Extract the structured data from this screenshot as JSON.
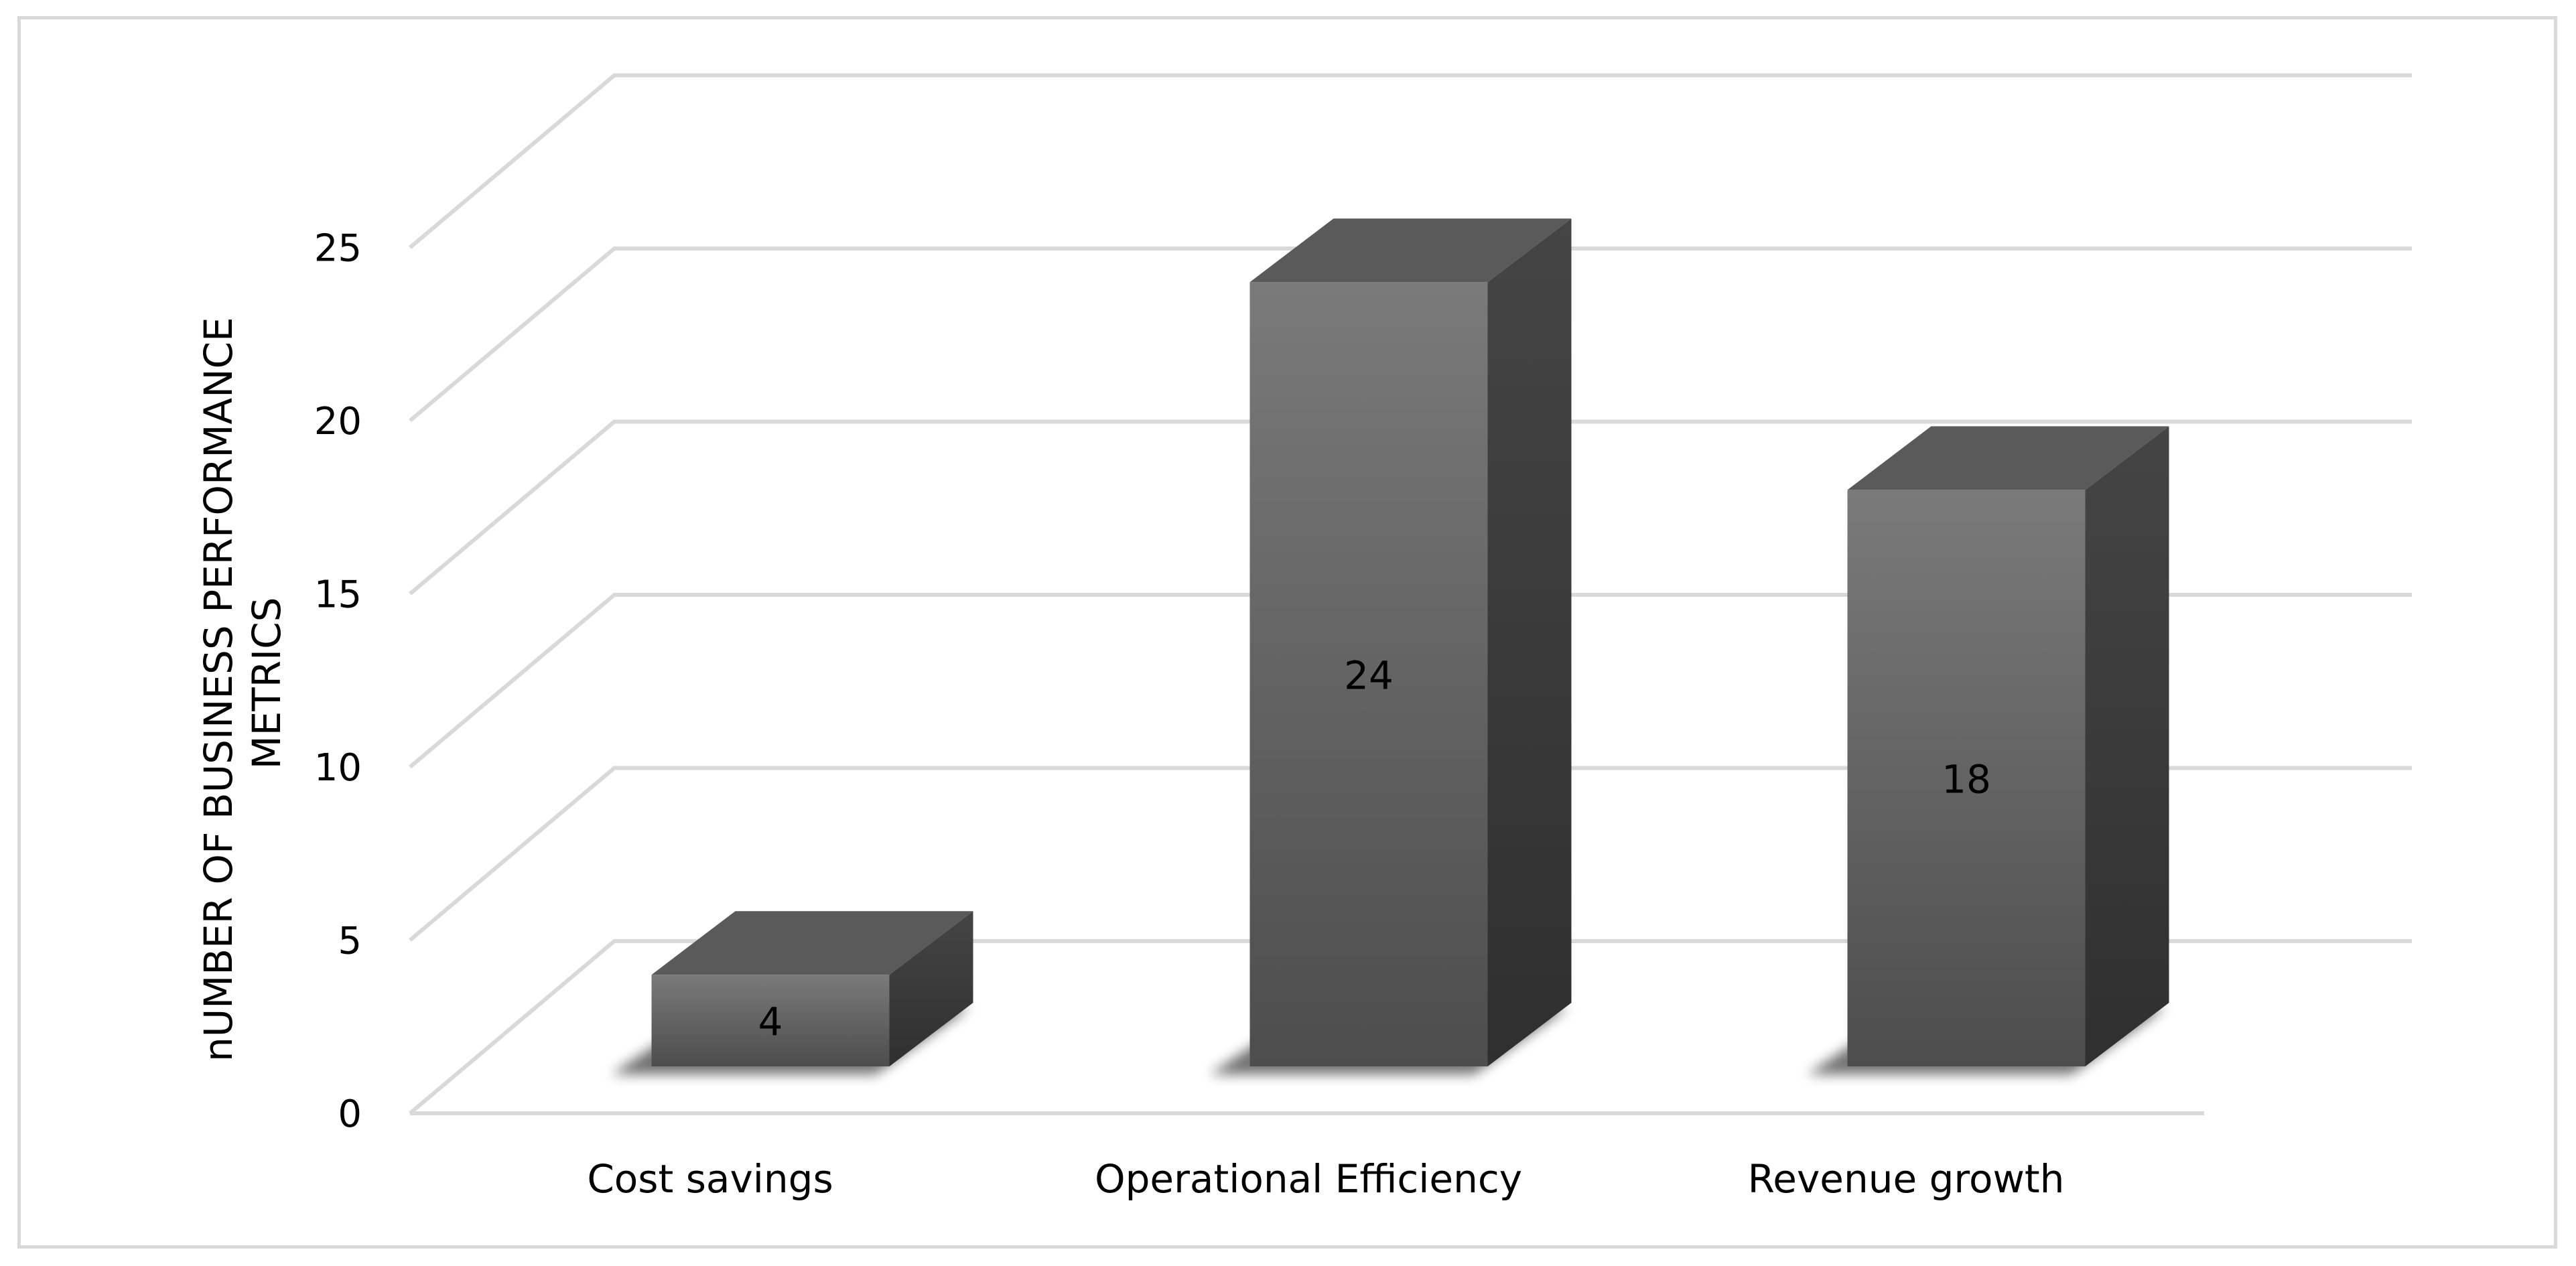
{
  "chart_data": {
    "type": "bar",
    "title": "",
    "xlabel": "",
    "ylabel": "nUMBER OF BUSINESS PERFORMANCE METRICS",
    "ylabel_lines": [
      "nUMBER OF BUSINESS PERFORMANCE",
      "METRICS"
    ],
    "categories": [
      "Cost savings",
      "Operational Efficiency",
      "Revenue growth"
    ],
    "values": [
      4,
      24,
      18
    ],
    "data_labels": [
      "4",
      "24",
      "18"
    ],
    "ylim": [
      0,
      25
    ],
    "yticks": [
      0,
      5,
      10,
      15,
      20,
      25
    ],
    "ytick_labels": [
      "0",
      "5",
      "10",
      "15",
      "20",
      "25"
    ],
    "grid": true,
    "legend": "none",
    "style": "3d-column",
    "colors": {
      "bar_front_top": "#7a7a7a",
      "bar_front_bottom": "#4d4d4d",
      "bar_side": "#383838",
      "bar_top": "#5a5a5a",
      "gridline": "#d9d9d9",
      "frame": "#d9d9d9"
    }
  }
}
